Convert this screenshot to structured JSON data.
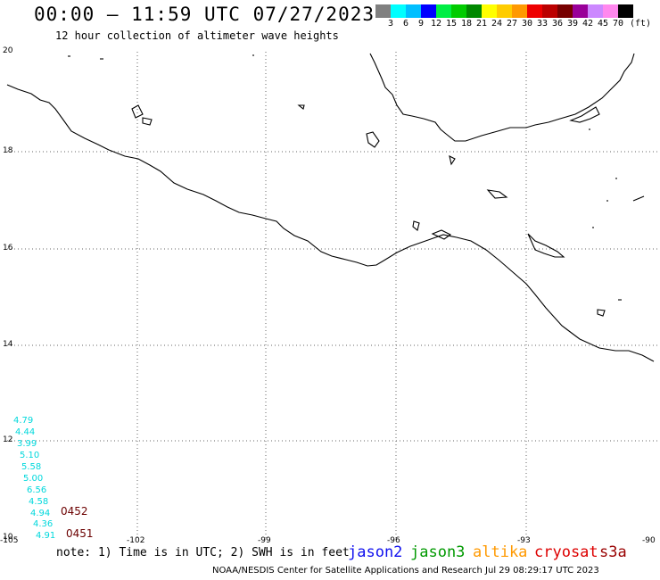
{
  "header": {
    "title": "00:00 – 11:59 UTC 07/27/2023",
    "subtitle": "12 hour collection of altimeter wave heights"
  },
  "colorbar": {
    "colors": [
      "#808080",
      "#00ffff",
      "#00bfff",
      "#0000ff",
      "#00ee44",
      "#00cc00",
      "#008800",
      "#ffff00",
      "#ffcc00",
      "#ff9900",
      "#ee0000",
      "#bb0000",
      "#770000",
      "#990099",
      "#cc88ff",
      "#ff88ee",
      "#000000"
    ],
    "labels": [
      "3",
      "6",
      "9",
      "12",
      "15",
      "18",
      "21",
      "24",
      "27",
      "30",
      "33",
      "36",
      "39",
      "42",
      "45",
      "70"
    ],
    "unit": "(ft)"
  },
  "map": {
    "lat_labels": [
      "20",
      "18",
      "16",
      "14",
      "12",
      "10"
    ],
    "lon_labels": [
      "-105",
      "-102",
      "-99",
      "-96",
      "-93",
      "-90"
    ]
  },
  "observations": {
    "wave_heights": [
      "4.79",
      "4.44",
      "3.99",
      "5.10",
      "5.58",
      "5.00",
      "6.56",
      "4.58",
      "4.94",
      "4.36",
      "4.91"
    ],
    "color": "#00d8dc",
    "pass_labels": [
      "0452",
      "0451"
    ]
  },
  "footer": {
    "note": "note: 1) Time is in UTC; 2) SWH is in feet",
    "satellites": [
      {
        "name": "jason2",
        "color": "#1010ee"
      },
      {
        "name": "jason3",
        "color": "#009900"
      },
      {
        "name": "altika",
        "color": "#ff9900"
      },
      {
        "name": "cryosat",
        "color": "#dd0000"
      },
      {
        "name": "s3a",
        "color": "#990000"
      }
    ],
    "credit": "NOAA/NESDIS Center for Satellite Applications and Research   Jul 29 08:29:17 UTC 2023"
  }
}
